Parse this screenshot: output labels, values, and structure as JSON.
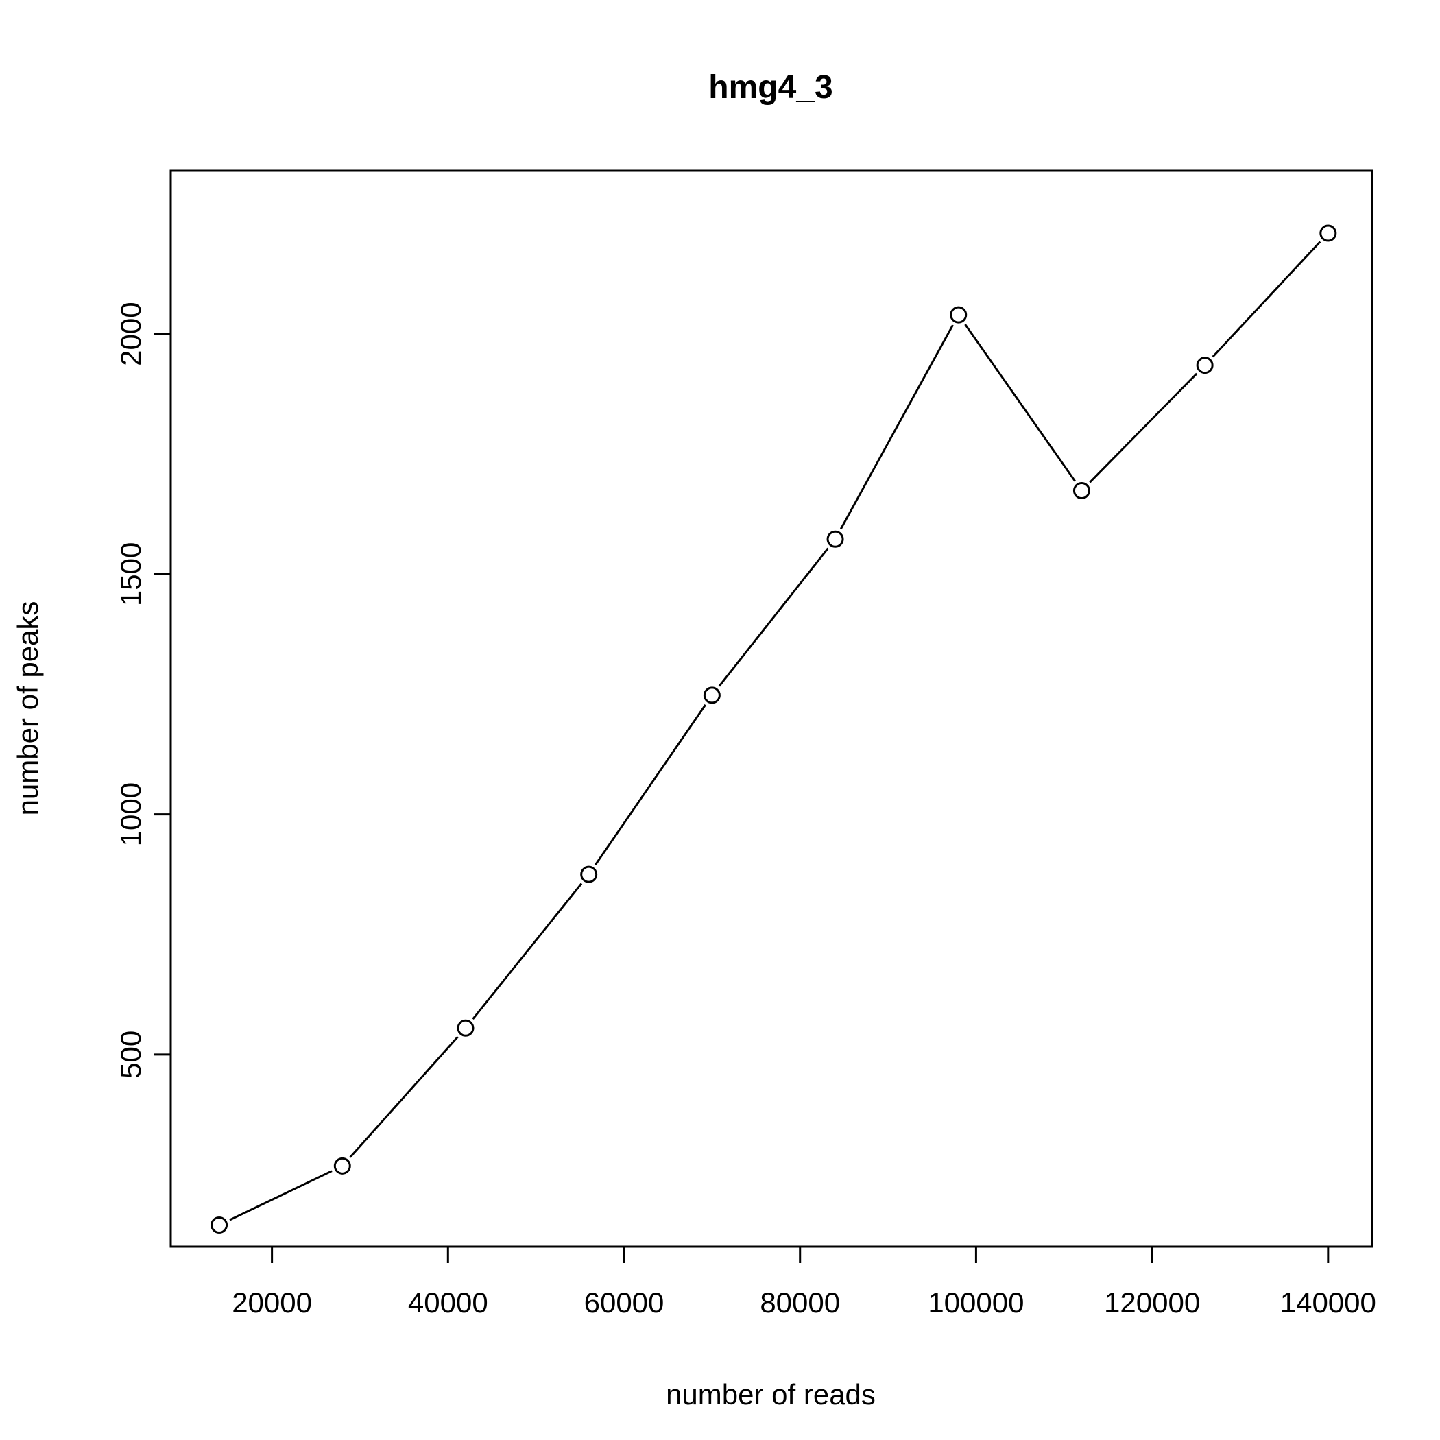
{
  "chart_data": {
    "type": "line",
    "title": "hmg4_3",
    "xlabel": "number of reads",
    "ylabel": "number of peaks",
    "xlim": [
      8500,
      145000
    ],
    "ylim": [
      100,
      2340
    ],
    "x_ticks": [
      20000,
      40000,
      60000,
      80000,
      100000,
      120000,
      140000
    ],
    "y_ticks": [
      500,
      1000,
      1500,
      2000
    ],
    "grid": false,
    "legend": "none",
    "line_color": "#000000",
    "series": [
      {
        "points": [
          {
            "x": 14000,
            "y": 145
          },
          {
            "x": 28000,
            "y": 268
          },
          {
            "x": 42000,
            "y": 555
          },
          {
            "x": 56000,
            "y": 875
          },
          {
            "x": 70000,
            "y": 1248
          },
          {
            "x": 84000,
            "y": 1573
          },
          {
            "x": 98000,
            "y": 2040
          },
          {
            "x": 112000,
            "y": 1674
          },
          {
            "x": 126000,
            "y": 1935
          },
          {
            "x": 140000,
            "y": 2210
          }
        ]
      }
    ]
  }
}
